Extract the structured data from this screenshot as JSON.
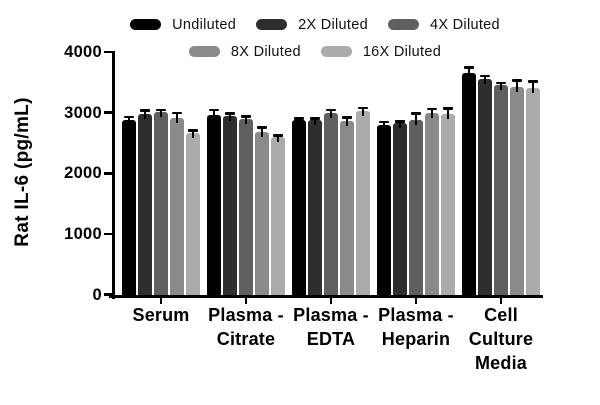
{
  "chart_data": {
    "type": "bar",
    "title": "",
    "ylabel": "Rat IL-6 (pg/mL)",
    "xlabel": "",
    "ylim": [
      0,
      4000
    ],
    "yticks": [
      0,
      1000,
      2000,
      3000,
      4000
    ],
    "grid": false,
    "legend_position": "top",
    "legend_rows": [
      [
        0,
        1,
        2
      ],
      [
        3,
        4
      ]
    ],
    "categories": [
      "Serum",
      "Plasma - Citrate",
      "Plasma - EDTA",
      "Plasma - Heparin",
      "Cell Culture Media"
    ],
    "category_label_lines": [
      [
        "Serum"
      ],
      [
        "Plasma -",
        "Citrate"
      ],
      [
        "Plasma -",
        "EDTA"
      ],
      [
        "Plasma -",
        "Heparin"
      ],
      [
        "Cell",
        "Culture",
        "Media"
      ]
    ],
    "series": [
      {
        "name": "Undiluted",
        "color": "#000000",
        "values": [
          2880,
          2960,
          2880,
          2790,
          3650
        ],
        "errors": [
          50,
          90,
          30,
          60,
          100
        ]
      },
      {
        "name": "2X Diluted",
        "color": "#2e2e2e",
        "values": [
          2980,
          2940,
          2880,
          2830,
          3550
        ],
        "errors": [
          60,
          50,
          30,
          30,
          60
        ]
      },
      {
        "name": "4X Diluted",
        "color": "#5f5f5f",
        "values": [
          3010,
          2900,
          3000,
          2880,
          3460
        ],
        "errors": [
          40,
          40,
          50,
          110,
          30
        ]
      },
      {
        "name": "8X Diluted",
        "color": "#8a8a8a",
        "values": [
          2910,
          2680,
          2870,
          3000,
          3430
        ],
        "errors": [
          90,
          80,
          50,
          60,
          100
        ]
      },
      {
        "name": "16X Diluted",
        "color": "#ababab",
        "values": [
          2660,
          2600,
          3020,
          2980,
          3410
        ],
        "errors": [
          50,
          30,
          60,
          90,
          110
        ]
      }
    ],
    "error_bar_color": "#000000",
    "axis_color": "#000000"
  }
}
